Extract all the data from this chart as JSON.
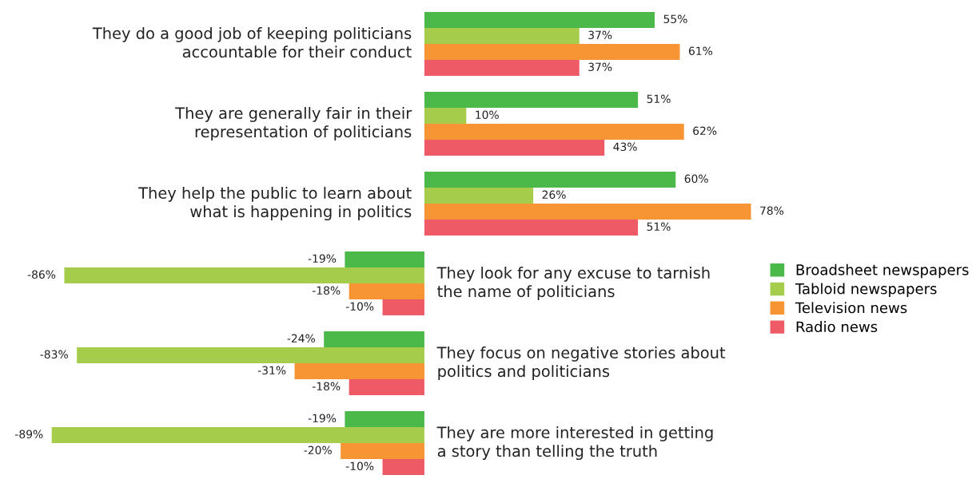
{
  "chart_data": {
    "type": "bar",
    "orientation": "horizontal",
    "categories": [
      "They do a good job of keeping politicians\naccountable for their conduct",
      "They are generally fair in their\nrepresentation of politicians",
      "They help the public to learn about\nwhat is happening in politics",
      "They look for any excuse to tarnish\nthe name of politicians",
      "They focus on negative stories about\npolitics and politicians",
      "They are more interested in getting\na story than telling the truth"
    ],
    "series": [
      {
        "name": "Broadsheet newspapers",
        "color": "#4bb84a",
        "values": [
          55,
          51,
          60,
          -19,
          -24,
          -19
        ],
        "value_labels": [
          "55%",
          "51%",
          "60%",
          "-19%",
          "-24%",
          "-19%"
        ]
      },
      {
        "name": "Tabloid newspapers",
        "color": "#a5cd4b",
        "values": [
          37,
          10,
          26,
          -86,
          -83,
          -89
        ],
        "value_labels": [
          "37%",
          "10%",
          "26%",
          "-86%",
          "-83%",
          "-89%"
        ]
      },
      {
        "name": "Television news",
        "color": "#f79433",
        "values": [
          61,
          62,
          78,
          -18,
          -31,
          -20
        ],
        "value_labels": [
          "61%",
          "62%",
          "78%",
          "-18%",
          "-31%",
          "-20%"
        ]
      },
      {
        "name": "Radio news",
        "color": "#ef5a67",
        "values": [
          37,
          43,
          51,
          -10,
          -18,
          -10
        ],
        "value_labels": [
          "37%",
          "43%",
          "51%",
          "-10%",
          "-18%",
          "-10%"
        ]
      }
    ],
    "legend": "right"
  }
}
